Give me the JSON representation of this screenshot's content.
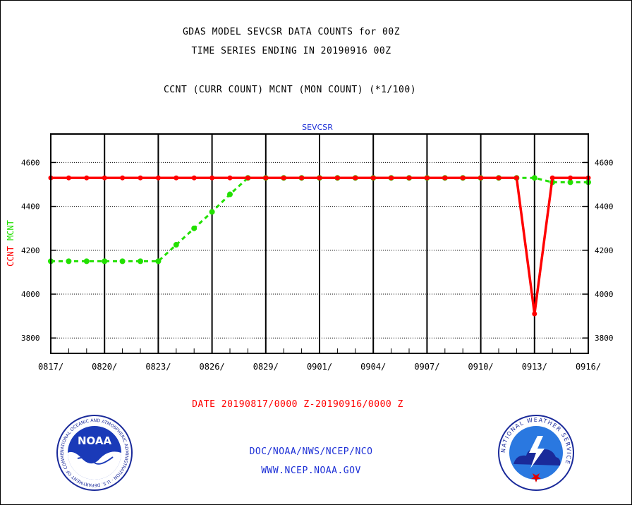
{
  "header": {
    "line1": "GDAS MODEL SEVCSR DATA COUNTS for 00Z",
    "line2": "TIME SERIES ENDING IN 20190916 00Z",
    "line3": "CCNT (CURR COUNT) MCNT (MON COUNT) (*1/100)"
  },
  "footer": {
    "date_range": "DATE 20190817/0000 Z-20190916/0000 Z",
    "org": "DOC/NOAA/NWS/NCEP/NCO",
    "site": "WWW.NCEP.NOAA.GOV"
  },
  "logos": {
    "noaa": "NOAA",
    "noaa_ring": "NATIONAL OCEANIC AND ATMOSPHERIC ADMINISTRATION · U.S. DEPARTMENT OF COMMERCE",
    "nws_ring": "NATIONAL WEATHER SERVICE"
  },
  "colors": {
    "ccnt": "#ff0000",
    "mcnt": "#22e000",
    "link": "#1c2fd6"
  },
  "chart_data": {
    "type": "line",
    "title": "SEVCSR",
    "ylabel_parts": [
      {
        "text": "CCNT",
        "color": "#ff0000"
      },
      {
        "text": "MCNT",
        "color": "#22e000"
      }
    ],
    "xlabel": "DATE 20190817/0000 Z-20190916/0000 Z",
    "x_ticks": [
      "0817/",
      "0820/",
      "0823/",
      "0826/",
      "0829/",
      "0901/",
      "0904/",
      "0907/",
      "0910/",
      "0913/",
      "0916/"
    ],
    "y_ticks": [
      3800,
      4000,
      4200,
      4400,
      4600
    ],
    "ylim": [
      3730,
      4730
    ],
    "x_range_days": [
      0,
      30
    ],
    "grid": true,
    "series": [
      {
        "name": "CCNT",
        "color": "#ff0000",
        "style": "solid",
        "x": [
          0,
          1,
          2,
          3,
          4,
          5,
          6,
          7,
          8,
          9,
          10,
          11,
          12,
          13,
          14,
          15,
          16,
          17,
          18,
          19,
          20,
          21,
          22,
          23,
          24,
          25,
          26,
          27,
          28,
          29,
          30
        ],
        "y": [
          4530,
          4530,
          4530,
          4530,
          4530,
          4530,
          4530,
          4530,
          4530,
          4530,
          4530,
          4530,
          4530,
          4530,
          4530,
          4530,
          4530,
          4530,
          4530,
          4530,
          4530,
          4530,
          4530,
          4530,
          4530,
          4530,
          4530,
          3910,
          4530,
          4530,
          4530
        ]
      },
      {
        "name": "MCNT",
        "color": "#22e000",
        "style": "dashed",
        "x": [
          0,
          1,
          2,
          3,
          4,
          5,
          6,
          7,
          8,
          9,
          10,
          11,
          12,
          13,
          14,
          15,
          16,
          17,
          18,
          19,
          20,
          21,
          22,
          23,
          24,
          25,
          26,
          27,
          28,
          29,
          30
        ],
        "y": [
          4150,
          4150,
          4150,
          4150,
          4150,
          4150,
          4150,
          4225,
          4300,
          4375,
          4455,
          4530,
          4530,
          4530,
          4530,
          4530,
          4530,
          4530,
          4530,
          4530,
          4530,
          4530,
          4530,
          4530,
          4530,
          4530,
          4530,
          4530,
          4510,
          4510,
          4510
        ]
      }
    ]
  }
}
